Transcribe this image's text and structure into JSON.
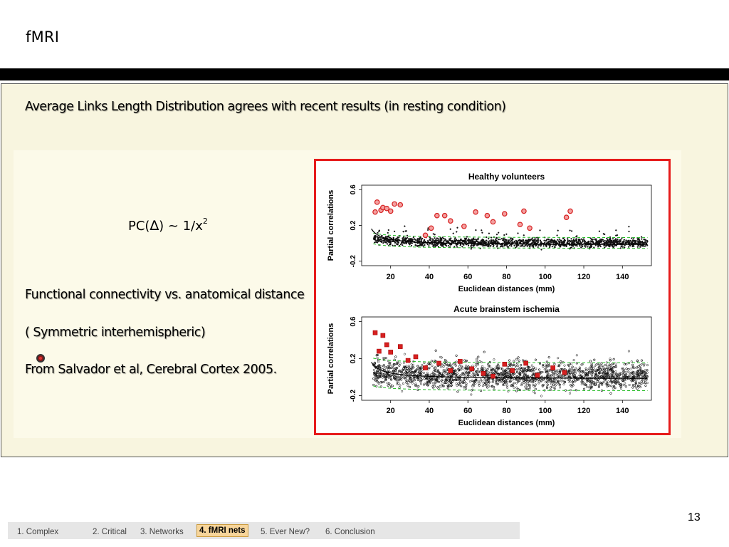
{
  "slide": {
    "title": "fMRI",
    "heading": "Average Links Length Distribution agrees with recent results (in resting condition)",
    "formula": {
      "prefix": "PC(",
      "symbol": "∆",
      "suffix": ") ~ 1/x",
      "exponent": "2"
    },
    "line1": "Functional connectivity  vs. anatomical distance",
    "line2": "(    Symmetric interhemispheric)",
    "line3": "From Salvador et al, Cerebral Cortex 2005.",
    "page_number": "13"
  },
  "nav": {
    "items": [
      "1. Complex",
      "2. Critical",
      "3.  Networks",
      "4. fMRI nets",
      "5. Ever New?",
      "6. Conclusion"
    ],
    "active_index": 3
  },
  "colors": {
    "panel": "#f8f5df",
    "frame": "#e61b1b",
    "highlight": "#d62020",
    "fit_line": "#000000",
    "band": "#22bb22"
  },
  "chart_data": [
    {
      "type": "scatter",
      "title": "Healthy volunteers",
      "xlabel": "Euclidean distances (mm)",
      "ylabel": "Partial correlations",
      "xticks": [
        "20",
        "40",
        "60",
        "80",
        "100",
        "120",
        "140"
      ],
      "yticks": [
        "-0.2",
        "0.2",
        "0.6"
      ],
      "xlim": [
        5,
        155
      ],
      "ylim": [
        -0.25,
        0.65
      ],
      "fit": "1/x",
      "highlighted_points": [
        {
          "x": 12,
          "y": 0.35
        },
        {
          "x": 13,
          "y": 0.46
        },
        {
          "x": 15,
          "y": 0.37
        },
        {
          "x": 16,
          "y": 0.4
        },
        {
          "x": 18,
          "y": 0.39
        },
        {
          "x": 20,
          "y": 0.36
        },
        {
          "x": 22,
          "y": 0.44
        },
        {
          "x": 25,
          "y": 0.43
        },
        {
          "x": 38,
          "y": 0.09
        },
        {
          "x": 41,
          "y": 0.17
        },
        {
          "x": 44,
          "y": 0.31
        },
        {
          "x": 48,
          "y": 0.31
        },
        {
          "x": 51,
          "y": 0.25
        },
        {
          "x": 58,
          "y": 0.19
        },
        {
          "x": 64,
          "y": 0.35
        },
        {
          "x": 70,
          "y": 0.31
        },
        {
          "x": 73,
          "y": 0.24
        },
        {
          "x": 79,
          "y": 0.33
        },
        {
          "x": 87,
          "y": 0.21
        },
        {
          "x": 89,
          "y": 0.36
        },
        {
          "x": 92,
          "y": 0.17
        },
        {
          "x": 111,
          "y": 0.29
        },
        {
          "x": 113,
          "y": 0.36
        }
      ]
    },
    {
      "type": "scatter",
      "title": "Acute brainstem ischemia",
      "xlabel": "Euclidean distances (mm)",
      "ylabel": "Partial correlations",
      "xticks": [
        "20",
        "40",
        "60",
        "80",
        "100",
        "120",
        "140"
      ],
      "yticks": [
        "-0.2",
        "0.2",
        "0.6"
      ],
      "xlim": [
        5,
        155
      ],
      "ylim": [
        -0.25,
        0.65
      ],
      "fit": "1/x",
      "highlighted_points": [
        {
          "x": 12,
          "y": 0.48
        },
        {
          "x": 14,
          "y": 0.28
        },
        {
          "x": 16,
          "y": 0.45
        },
        {
          "x": 18,
          "y": 0.35
        },
        {
          "x": 20,
          "y": 0.27
        },
        {
          "x": 25,
          "y": 0.33
        },
        {
          "x": 29,
          "y": 0.18
        },
        {
          "x": 33,
          "y": 0.22
        },
        {
          "x": 38,
          "y": 0.1
        },
        {
          "x": 45,
          "y": 0.15
        },
        {
          "x": 51,
          "y": 0.07
        },
        {
          "x": 56,
          "y": 0.17
        },
        {
          "x": 62,
          "y": 0.09
        },
        {
          "x": 68,
          "y": 0.04
        },
        {
          "x": 73,
          "y": 0.01
        },
        {
          "x": 79,
          "y": 0.14
        },
        {
          "x": 83,
          "y": 0.07
        },
        {
          "x": 90,
          "y": 0.15
        },
        {
          "x": 96,
          "y": 0.02
        },
        {
          "x": 104,
          "y": 0.1
        },
        {
          "x": 110,
          "y": 0.05
        }
      ]
    }
  ]
}
